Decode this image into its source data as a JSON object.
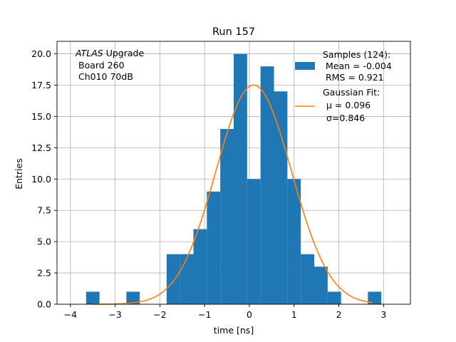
{
  "chart_data": {
    "type": "bar",
    "title": "Run 157",
    "xlabel": "time [ns]",
    "ylabel": "Entries",
    "xlim": [
      -4.3,
      3.6
    ],
    "ylim": [
      0,
      21
    ],
    "xticks": [
      -4,
      -3,
      -2,
      -1,
      0,
      1,
      2,
      3
    ],
    "xtick_labels": [
      "−4",
      "−3",
      "−2",
      "−1",
      "0",
      "1",
      "2",
      "3"
    ],
    "yticks": [
      0,
      2.5,
      5,
      7.5,
      10,
      12.5,
      15,
      17.5,
      20
    ],
    "ytick_labels": [
      "0.0",
      "2.5",
      "5.0",
      "7.5",
      "10.0",
      "12.5",
      "15.0",
      "17.5",
      "20.0"
    ],
    "grid": true,
    "legend_position": "top-right",
    "annotation": {
      "line1_italic": "ATLAS",
      "line1_rest": " Upgrade",
      "line2": "Board 260",
      "line3": "Ch010 70dB"
    },
    "histogram": {
      "name": "Samples (124):",
      "stats": [
        "Mean = -0.004",
        "RMS = 0.921"
      ],
      "color": "#1f77b4",
      "bins": [
        {
          "x0": -3.65,
          "x1": -3.35,
          "count": 1
        },
        {
          "x0": -2.75,
          "x1": -2.45,
          "count": 1
        },
        {
          "x0": -1.85,
          "x1": -1.55,
          "count": 4
        },
        {
          "x0": -1.55,
          "x1": -1.25,
          "count": 4
        },
        {
          "x0": -1.25,
          "x1": -0.95,
          "count": 6
        },
        {
          "x0": -0.95,
          "x1": -0.65,
          "count": 9
        },
        {
          "x0": -0.65,
          "x1": -0.35,
          "count": 14
        },
        {
          "x0": -0.35,
          "x1": -0.05,
          "count": 20
        },
        {
          "x0": -0.05,
          "x1": 0.25,
          "count": 10
        },
        {
          "x0": 0.25,
          "x1": 0.55,
          "count": 19
        },
        {
          "x0": 0.55,
          "x1": 0.85,
          "count": 17
        },
        {
          "x0": 0.85,
          "x1": 1.15,
          "count": 10
        },
        {
          "x0": 1.15,
          "x1": 1.45,
          "count": 4
        },
        {
          "x0": 1.45,
          "x1": 1.75,
          "count": 3
        },
        {
          "x0": 1.75,
          "x1": 2.05,
          "count": 1
        },
        {
          "x0": 2.65,
          "x1": 2.95,
          "count": 1
        }
      ]
    },
    "fit": {
      "name": "Gaussian Fit:",
      "params": [
        "μ = 0.096",
        "σ=0.846"
      ],
      "color": "#ff7f0e",
      "amplitude": 17.5,
      "mu": 0.096,
      "sigma": 0.846,
      "x_range": [
        -3.5,
        2.75
      ]
    }
  }
}
